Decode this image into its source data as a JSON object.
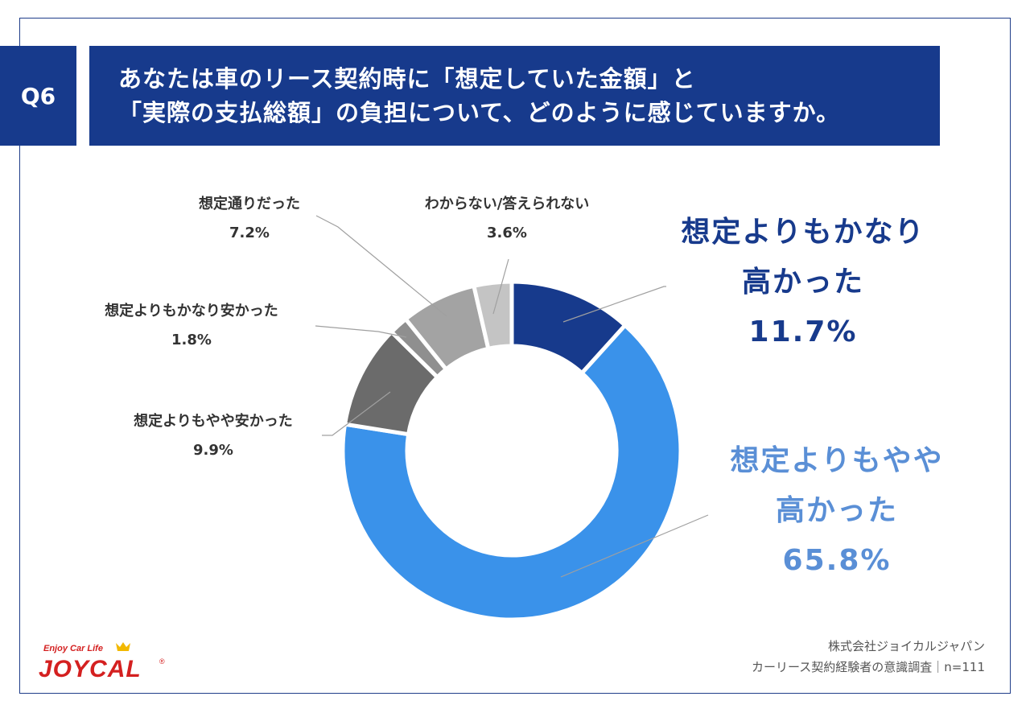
{
  "question": {
    "badge": "Q6",
    "line1": "あなたは車のリース契約時に「想定していた金額」と",
    "line2": "「実際の支払総額」の負担について、どのように感じていますか。"
  },
  "chart_data": {
    "type": "donut",
    "title": "",
    "slices": [
      {
        "name": "想定よりもかなり高かった",
        "value": 11.7,
        "color": "#173a8c"
      },
      {
        "name": "想定よりもやや高かった",
        "value": 65.8,
        "color": "#3a92ea"
      },
      {
        "name": "想定よりもやや安かった",
        "value": 9.9,
        "color": "#6b6b6b"
      },
      {
        "name": "想定よりもかなり安かった",
        "value": 1.8,
        "color": "#8f8f8f"
      },
      {
        "name": "想定通りだった",
        "value": 7.2,
        "color": "#a3a3a3"
      },
      {
        "name": "わからない/答えられない",
        "value": 3.6,
        "color": "#c4c4c4"
      }
    ]
  },
  "labels": {
    "very_high": {
      "line1": "想定よりもかなり",
      "line2": "高かった",
      "pct": "11.7%"
    },
    "slightly_high": {
      "line1": "想定よりもやや",
      "line2": "高かった",
      "pct": "65.8%"
    },
    "slightly_low": {
      "line1": "想定よりもやや安かった",
      "pct": "9.9%"
    },
    "very_low": {
      "line1": "想定よりもかなり安かった",
      "pct": "1.8%"
    },
    "as_expected": {
      "line1": "想定通りだった",
      "pct": "7.2%"
    },
    "unknown": {
      "line1": "わからない/答えられない",
      "pct": "3.6%"
    }
  },
  "footer": {
    "company": "株式会社ジョイカルジャパン",
    "survey": "カーリース契約経験者の意識調査｜n=111"
  },
  "logo": {
    "tagline": "Enjoy Car Life",
    "brand": "JOYCAL",
    "registered": "®"
  }
}
